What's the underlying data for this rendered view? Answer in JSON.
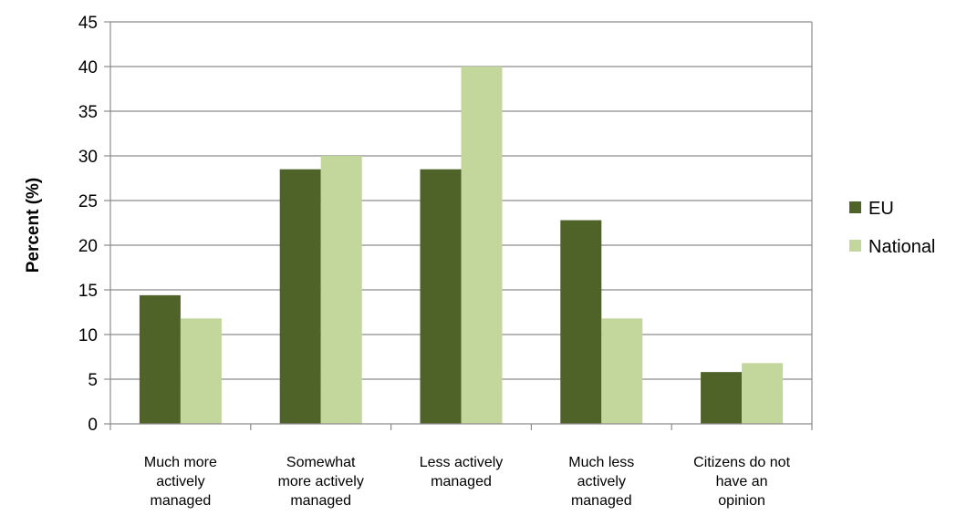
{
  "chart_data": {
    "type": "bar",
    "title": "",
    "xlabel": "",
    "ylabel": "Percent (%)",
    "ylim": [
      0,
      45
    ],
    "ytick_step": 5,
    "grid": true,
    "legend_position": "right",
    "categories": [
      [
        "Much more",
        "actively",
        "managed"
      ],
      [
        "Somewhat",
        "more actively",
        "managed"
      ],
      [
        "Less actively",
        "managed"
      ],
      [
        "Much less",
        "actively",
        "managed"
      ],
      [
        "Citizens do not",
        "have an",
        "opinion"
      ]
    ],
    "series": [
      {
        "name": "EU",
        "color": "#4f6228",
        "values": [
          14.4,
          28.5,
          28.5,
          22.8,
          5.8
        ]
      },
      {
        "name": "National",
        "color": "#c3d69b",
        "values": [
          11.8,
          30.0,
          40.0,
          11.8,
          6.8
        ]
      }
    ]
  }
}
